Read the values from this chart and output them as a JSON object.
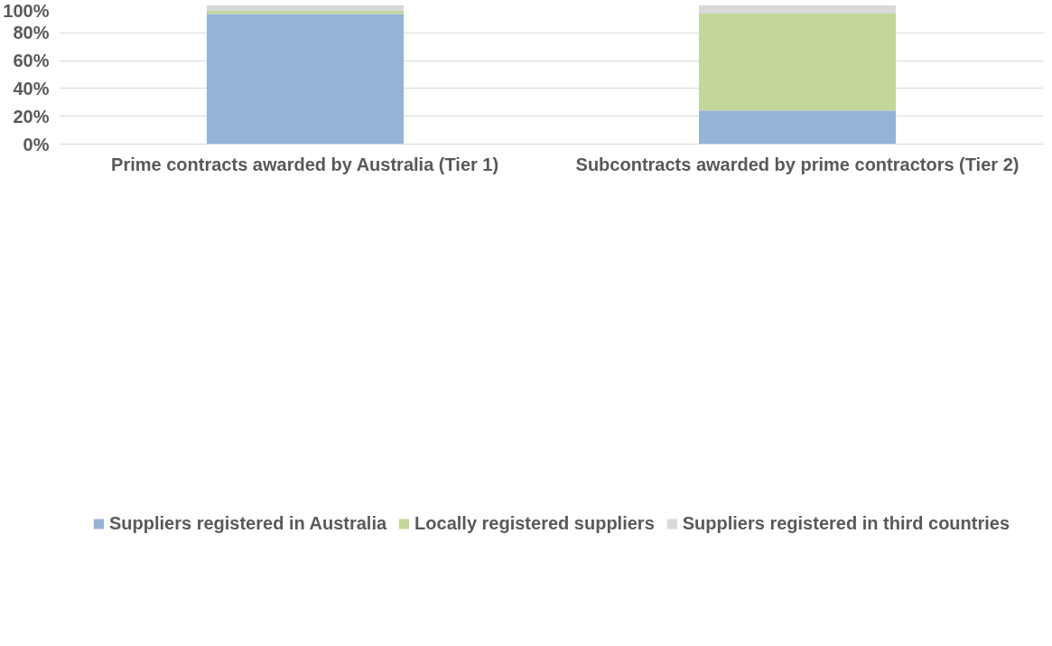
{
  "chart_data": {
    "type": "bar",
    "stacked": true,
    "categories": [
      "Prime contracts awarded by Australia (Tier 1)",
      "Subcontracts awarded by prime contractors (Tier 2)"
    ],
    "series": [
      {
        "name": "Suppliers registered in Australia",
        "color": "#95b3d7",
        "values": [
          93.5,
          24.2
        ]
      },
      {
        "name": "Locally registered suppliers",
        "color": "#c4d79b",
        "values": [
          2.2,
          69.6
        ]
      },
      {
        "name": "Suppliers registered in third countries",
        "color": "#d9d9d9",
        "values": [
          4.3,
          6.2
        ]
      }
    ],
    "ylim": [
      0,
      100
    ],
    "yticks": [
      {
        "value": 0,
        "label": "0%"
      },
      {
        "value": 20,
        "label": "20%"
      },
      {
        "value": 40,
        "label": "40%"
      },
      {
        "value": 60,
        "label": "60%"
      },
      {
        "value": 80,
        "label": "80%"
      },
      {
        "value": 100,
        "label": "100%"
      }
    ],
    "grid": "y",
    "legend": "bottom"
  }
}
